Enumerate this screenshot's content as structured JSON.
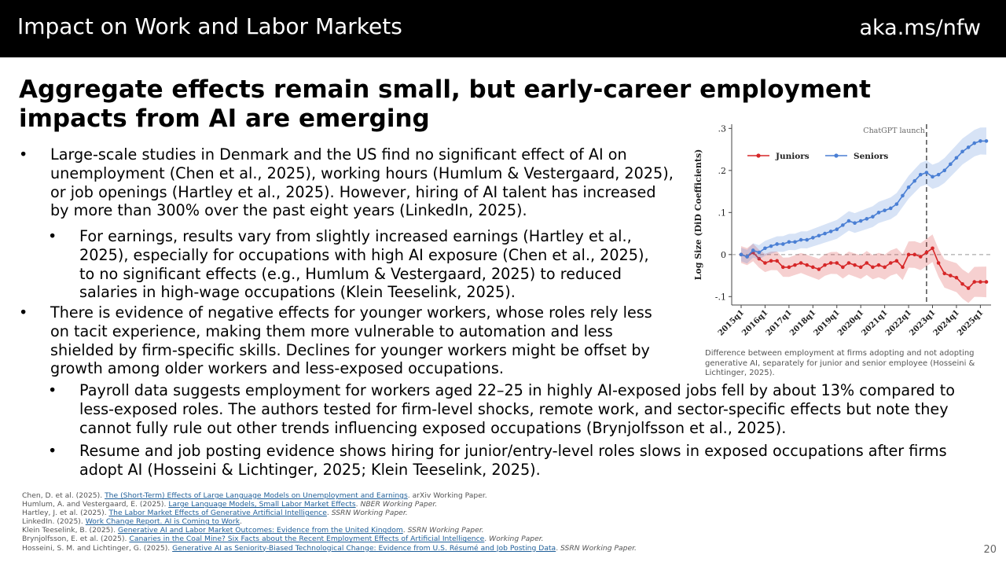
{
  "header": {
    "title": "Impact on Work and Labor Markets",
    "url": "aka.ms/nfw"
  },
  "headline": "Aggregate effects remain small, but early-career employment impacts from AI are emerging",
  "bullets": [
    {
      "text": "Large-scale studies in Denmark and the US find no significant effect of AI on unemployment (Chen et al., 2025), working hours (Humlum & Vestergaard, 2025), or job openings (Hartley et al., 2025). However, hiring of AI talent has increased by more than 300% over the past eight years (LinkedIn, 2025)."
    },
    {
      "text": "For earnings, results vary from slightly increased earnings (Hartley et al., 2025), especially for occupations with high AI exposure (Chen et al., 2025), to no significant effects (e.g., Humlum & Vestergaard, 2025) to reduced salaries in high-wage occupations (Klein Teeselink, 2025)."
    },
    {
      "text": "There is evidence of negative effects for younger workers, whose roles rely less on tacit experience, making them more vulnerable to automation and less shielded by firm-specific skills. Declines for younger workers might be offset by growth among older workers and less-exposed occupations."
    },
    {
      "text": "Payroll data suggests employment for workers aged 22–25 in highly AI-exposed jobs fell by about 13% compared to less-exposed roles. The authors tested for firm-level shocks, remote work, and sector-specific effects but note they cannot fully rule out other trends influencing exposed occupations (Brynjolfsson et al., 2025)."
    },
    {
      "text": "Resume and job posting evidence shows hiring for junior/entry-level roles slows in exposed occupations after firms adopt AI (Hosseini & Lichtinger, 2025; Klein Teeselink, 2025)."
    }
  ],
  "bullet_symbol": "•",
  "chart_data": {
    "type": "line",
    "ylabel": "Log Size (DiD Coefficients)",
    "ylim": [
      -0.12,
      0.31
    ],
    "yticks": [
      -0.1,
      0,
      0.1,
      0.2,
      0.3
    ],
    "ytick_labels": [
      "-.1",
      "0",
      ".1",
      ".2",
      ".3"
    ],
    "x_tick_labels": [
      "2015q1",
      "2016q1",
      "2017q1",
      "2018q1",
      "2019q1",
      "2020q1",
      "2021q1",
      "2022q1",
      "2023q1",
      "2024q1",
      "2025q1"
    ],
    "x_tick_positions": [
      0,
      4,
      8,
      12,
      16,
      20,
      24,
      28,
      32,
      36,
      40
    ],
    "annotation": "ChatGPT launch",
    "annotation_x": 31,
    "legend_position": "top-left",
    "series": [
      {
        "name": "Juniors",
        "color": "#d62728",
        "values": [
          0,
          -0.005,
          0.005,
          -0.01,
          -0.02,
          -0.015,
          -0.015,
          -0.03,
          -0.03,
          -0.025,
          -0.02,
          -0.025,
          -0.03,
          -0.035,
          -0.025,
          -0.02,
          -0.02,
          -0.03,
          -0.02,
          -0.025,
          -0.03,
          -0.02,
          -0.03,
          -0.025,
          -0.03,
          -0.02,
          -0.015,
          -0.03,
          0,
          0,
          -0.005,
          0.005,
          0.015,
          -0.02,
          -0.045,
          -0.05,
          -0.055,
          -0.07,
          -0.08,
          -0.065,
          -0.065,
          -0.065
        ]
      },
      {
        "name": "Seniors",
        "color": "#4a7fd4",
        "values": [
          0,
          -0.005,
          0.01,
          0.005,
          0.015,
          0.02,
          0.025,
          0.025,
          0.03,
          0.03,
          0.035,
          0.035,
          0.04,
          0.045,
          0.05,
          0.055,
          0.06,
          0.07,
          0.08,
          0.075,
          0.08,
          0.085,
          0.09,
          0.1,
          0.105,
          0.11,
          0.12,
          0.14,
          0.16,
          0.175,
          0.19,
          0.195,
          0.185,
          0.19,
          0.2,
          0.215,
          0.23,
          0.245,
          0.255,
          0.265,
          0.27,
          0.27
        ]
      }
    ]
  },
  "caption": "Difference between employment at firms adopting and not adopting generative AI, separately for junior and senior employee (Hosseini & Lichtinger, 2025).",
  "references": [
    {
      "pre": "Chen, D. et al. (2025). ",
      "link": "The (Short-Term) Effects of Large Language Models on Unemployment and Earnings",
      "post": ". arXiv Working Paper.",
      "italic": ""
    },
    {
      "pre": "Humlum, A. and Vestergaard, E. (2025). ",
      "link": "Large Language Models, Small Labor Market Effects",
      "post": ". ",
      "italic": "NBER Working Paper."
    },
    {
      "pre": "Hartley, J. et al. (2025). ",
      "link": "The Labor Market Effects of Generative Artificial Intelligence",
      "post": ". ",
      "italic": "SSRN Working Paper."
    },
    {
      "pre": "LinkedIn. (2025). ",
      "link": "Work Change Report. AI is Coming to Work",
      "post": ".",
      "italic": ""
    },
    {
      "pre": "Klein Teeselink, B. (2025). ",
      "link": "Generative AI and Labor Market Outcomes: Evidence from the United Kingdom",
      "post": ". ",
      "italic": "SSRN Working Paper."
    },
    {
      "pre": "Brynjolfsson, E. et al. (2025). ",
      "link": "Canaries in the Coal Mine? Six Facts about the Recent Employment Effects of Artificial Intelligence",
      "post": ". ",
      "italic": "Working Paper."
    },
    {
      "pre": "Hosseini, S. M. and Lichtinger, G. (2025). ",
      "link": "Generative AI as Seniority-Biased Technological Change: Evidence from U.S. Résumé and Job Posting Data",
      "post": ". ",
      "italic": "SSRN Working Paper."
    }
  ],
  "page_number": "20"
}
